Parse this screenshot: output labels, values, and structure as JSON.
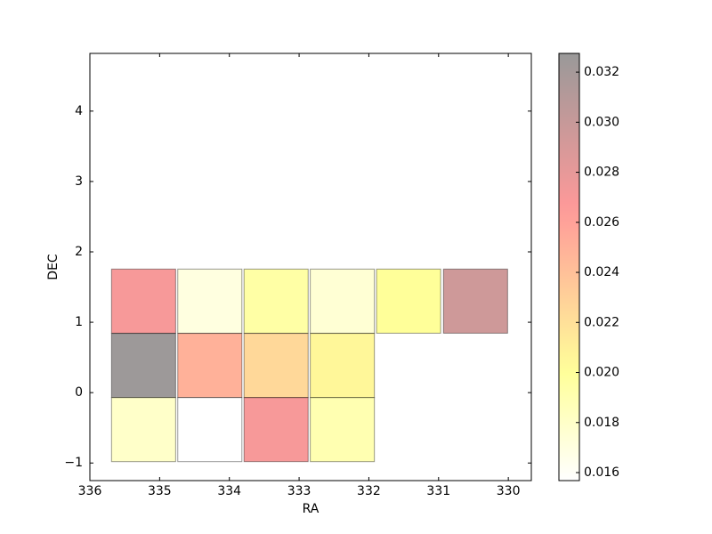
{
  "chart_data": {
    "type": "heatmap",
    "xlabel": "RA",
    "ylabel": "DEC",
    "x": [
      335.23,
      334.28,
      333.33,
      332.38,
      331.43,
      330.47,
      335.23,
      334.28,
      333.33,
      332.38,
      335.23,
      334.28,
      333.33,
      332.38
    ],
    "y": [
      1.3,
      1.3,
      1.3,
      1.3,
      1.3,
      1.3,
      0.386,
      0.386,
      0.386,
      0.386,
      -0.525,
      -0.525,
      -0.525,
      -0.525
    ],
    "values": [
      0.027,
      0.017,
      0.0195,
      0.0175,
      0.02,
      0.0295,
      0.0325,
      0.025,
      0.0225,
      0.0205,
      0.018,
      0.0157,
      0.027,
      0.019
    ],
    "xlim": [
      336,
      329.67
    ],
    "xticks": [
      336,
      335,
      334,
      333,
      332,
      331,
      330
    ],
    "ylim": [
      -1.25,
      4.82
    ],
    "yticks": [
      {
        "value": -1,
        "label": "−1"
      },
      0,
      1,
      2,
      3,
      4
    ],
    "colormap": "hot_r",
    "alpha": 0.4,
    "clim": [
      0.01568,
      0.03275
    ],
    "cticks": [
      0.016,
      0.018,
      {
        "value": 0.02,
        "label": "0.020"
      },
      0.022,
      0.024,
      0.026,
      0.028,
      {
        "value": 0.03,
        "label": "0.030"
      },
      0.032
    ]
  }
}
